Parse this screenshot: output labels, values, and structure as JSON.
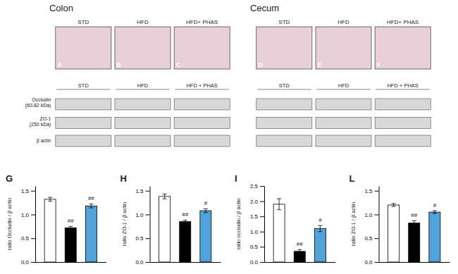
{
  "chart_data": [
    {
      "type": "image",
      "title": "Colon",
      "categories": [
        "STD",
        "HFD",
        "HFD+ PHAS"
      ],
      "annotations": [
        "A",
        "B",
        "C"
      ]
    },
    {
      "type": "image",
      "title": "Cecum",
      "categories": [
        "STD",
        "HFD",
        "HFD+ PHAS"
      ],
      "annotations": [
        "D",
        "E",
        "F"
      ]
    },
    {
      "type": "blot",
      "categories": [
        "STD",
        "HFD",
        "HFD + PHAS"
      ],
      "annotations": [
        "Occludin\n(60-82 kDa)",
        "ZO-1\n(250 kDa)",
        "β actin"
      ]
    },
    {
      "type": "blot",
      "categories": [
        "STD",
        "HFD",
        "HFD + PHAS"
      ]
    },
    {
      "type": "bar",
      "title": "G",
      "ylabel": "ratio Occludin / β actin",
      "categories": [
        null,
        null,
        null
      ],
      "values": [
        1.32,
        0.72,
        1.18
      ],
      "errors": [
        0.04,
        0.03,
        0.04
      ],
      "colors": [
        "white",
        "black",
        "#4fa3d8"
      ],
      "annotations": [
        null,
        "##",
        "##"
      ],
      "ylim": [
        0.0,
        1.6
      ],
      "yticks": [
        {
          "value": 0.0,
          "label": "0.0"
        },
        0.5,
        {
          "value": 1.0,
          "label": "1.0"
        },
        1.5
      ],
      "tick_labels": "y"
    },
    {
      "type": "bar",
      "title": "H",
      "ylabel": "ratio ZO-1 / β actin",
      "categories": [
        null,
        null,
        null
      ],
      "values": [
        1.38,
        0.85,
        1.08
      ],
      "errors": [
        0.05,
        0.03,
        0.04
      ],
      "colors": [
        "white",
        "black",
        "#4fa3d8"
      ],
      "annotations": [
        null,
        "##",
        "#"
      ],
      "ylim": [
        0.0,
        1.6
      ],
      "yticks": [
        {
          "value": 0.0,
          "label": "0.0"
        },
        0.5,
        {
          "value": 1.0,
          "label": "1.0"
        },
        1.5
      ],
      "tick_labels": "y"
    },
    {
      "type": "bar",
      "title": "I",
      "ylabel": "ratio occludin / β actin",
      "categories": [
        null,
        null,
        null
      ],
      "values": [
        1.9,
        0.35,
        1.1
      ],
      "errors": [
        0.18,
        0.06,
        0.1
      ],
      "colors": [
        "white",
        "black",
        "#4fa3d8"
      ],
      "annotations": [
        null,
        "##",
        "#"
      ],
      "ylim": [
        0.0,
        2.5
      ],
      "yticks": [
        {
          "value": 0.0,
          "label": "0.0"
        },
        0.5,
        {
          "value": 1.0,
          "label": "1.0"
        },
        1.5,
        {
          "value": 2.0,
          "label": "2.0"
        },
        2.5
      ],
      "tick_labels": "y"
    },
    {
      "type": "bar",
      "title": "L",
      "ylabel": "ratio ZO-1 / β actin",
      "categories": [
        null,
        null,
        null
      ],
      "values": [
        1.2,
        0.82,
        1.05
      ],
      "errors": [
        0.03,
        0.05,
        0.03
      ],
      "colors": [
        "white",
        "black",
        "#4fa3d8"
      ],
      "annotations": [
        null,
        "##",
        "#"
      ],
      "ylim": [
        0.0,
        1.6
      ],
      "yticks": [
        {
          "value": 0.0,
          "label": "0.0"
        },
        0.5,
        {
          "value": 1.0,
          "label": "1.0"
        },
        1.5
      ],
      "tick_labels": "y"
    }
  ]
}
